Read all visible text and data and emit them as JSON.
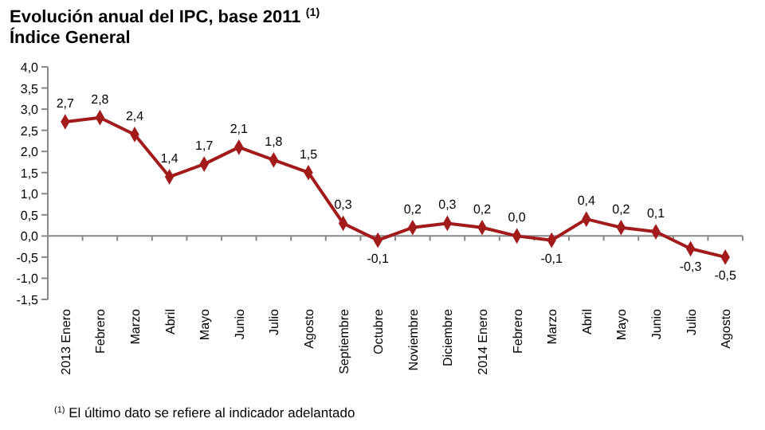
{
  "chart_data": {
    "type": "line",
    "title": "Evolución anual del IPC, base 2011 $^{(1)}$",
    "subtitle": "Índice General",
    "categories": [
      "2013 Enero",
      "Febrero",
      "Marzo",
      "Abril",
      "Mayo",
      "Junio",
      "Julio",
      "Agosto",
      "Septiembre",
      "Octubre",
      "Noviembre",
      "Diciembre",
      "2014 Enero",
      "Febrero",
      "Marzo",
      "Abril",
      "Mayo",
      "Junio",
      "Julio",
      "Agosto"
    ],
    "series": [
      {
        "color": "#a31a1a",
        "values": [
          2.7,
          2.8,
          2.4,
          1.4,
          1.7,
          2.1,
          1.8,
          1.5,
          0.3,
          -0.1,
          0.2,
          0.3,
          0.2,
          0.0,
          -0.1,
          0.4,
          0.2,
          0.1,
          -0.3,
          -0.5
        ],
        "value_labels": [
          "2,7",
          "2,8",
          "2,4",
          "1,4",
          "1,7",
          "2,1",
          "1,8",
          "1,5",
          "0,3",
          "-0,1",
          "0,2",
          "0,3",
          "0,2",
          "0,0",
          "-0,1",
          "0,4",
          "0,2",
          "0,1",
          "-0,3",
          "-0,5"
        ]
      }
    ],
    "ylim": [
      -1.5,
      4
    ],
    "yticks": [
      {
        "value": -1.5,
        "label": "-1,5"
      },
      {
        "value": -1,
        "label": "-1,0"
      },
      {
        "value": -0.5,
        "label": "-0,5"
      },
      {
        "value": 0,
        "label": "0,0"
      },
      {
        "value": 0.5,
        "label": "0,5"
      },
      {
        "value": 1,
        "label": "1,0"
      },
      {
        "value": 1.5,
        "label": "1,5"
      },
      {
        "value": 2,
        "label": "2,0"
      },
      {
        "value": 2.5,
        "label": "2,5"
      },
      {
        "value": 3,
        "label": "3,0"
      },
      {
        "value": 3.5,
        "label": "3,5"
      },
      {
        "value": 4,
        "label": "4,0"
      }
    ],
    "marker": "diamond",
    "annotations": [
      "$^{(1)}$ El último dato se refiere al indicador adelantado"
    ]
  }
}
